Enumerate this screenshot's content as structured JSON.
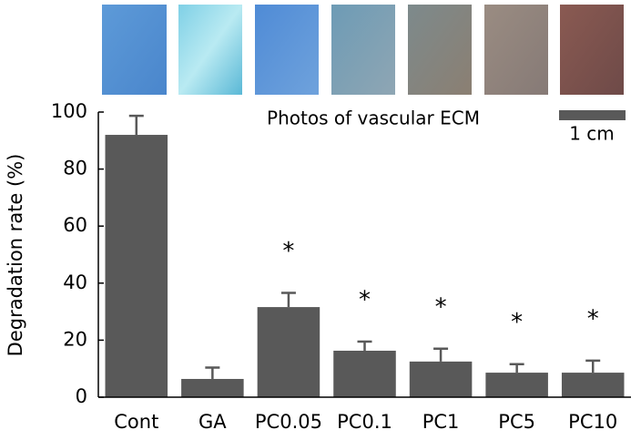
{
  "chart_data": {
    "type": "bar",
    "y_label": "Degradation rate (%)",
    "categories": [
      "Cont",
      "GA",
      "PC0.05",
      "PC0.1",
      "PC1",
      "PC5",
      "PC10"
    ],
    "values": [
      92,
      6.4,
      31.6,
      16.3,
      12.5,
      8.6,
      8.6
    ],
    "errors": [
      6.7,
      4,
      5,
      3.2,
      4.5,
      3,
      4.2
    ],
    "markers": [
      null,
      null,
      "*",
      "*",
      "*",
      "*",
      "*"
    ],
    "color": "#595959",
    "ylim": [
      0,
      100
    ],
    "yticks": [
      0,
      20,
      40,
      60,
      80,
      100
    ],
    "annotations": [
      "Photos of vascular ECM",
      "1 cm"
    ]
  }
}
